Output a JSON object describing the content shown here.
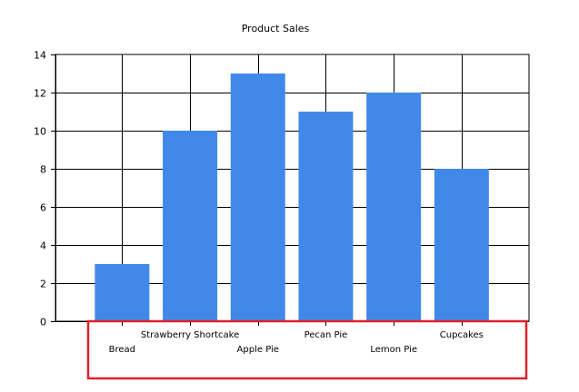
{
  "chart_data": {
    "type": "bar",
    "title": "Product Sales",
    "xlabel": "",
    "ylabel": "",
    "categories": [
      "Bread",
      "Strawberry Shortcake",
      "Apple Pie",
      "Pecan Pie",
      "Lemon Pie",
      "Cupcakes"
    ],
    "values": [
      3,
      10,
      13,
      11,
      12,
      8
    ],
    "ylim": [
      0,
      14
    ],
    "yticks": [
      "0",
      "2",
      "4",
      "6",
      "8",
      "10",
      "12",
      "14"
    ],
    "grid": true,
    "legend": "none",
    "colors": {
      "bar": "#4189E8",
      "grid": "#000000",
      "highlight_box": "#E0202A"
    }
  }
}
